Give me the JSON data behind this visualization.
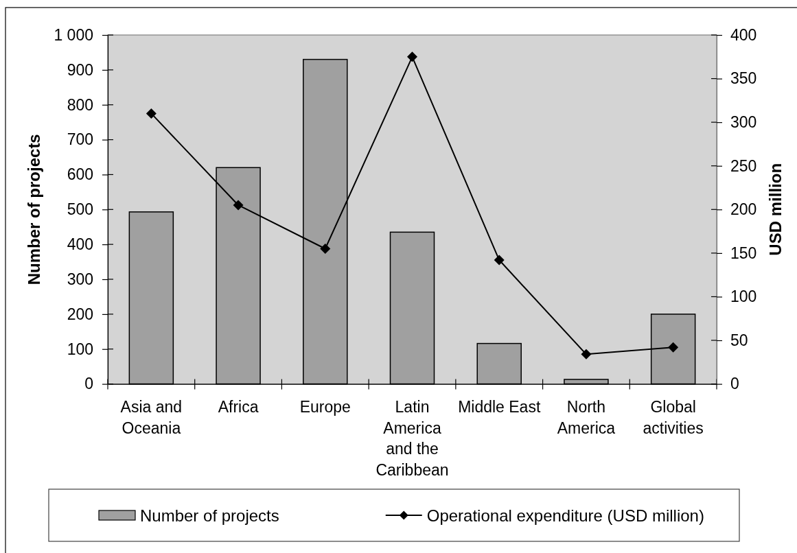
{
  "chart_data": {
    "type": "bar",
    "categories": [
      "Asia and Oceania",
      "Africa",
      "Europe",
      "Latin America and the Caribbean",
      "Middle East",
      "North America",
      "Global activities"
    ],
    "series": [
      {
        "name": "Number of projects",
        "color": "#a0a0a0",
        "values": [
          493,
          620,
          930,
          435,
          116,
          13,
          200
        ]
      },
      {
        "name": "Operational expenditure (USD million)",
        "type": "line",
        "axis": "y2",
        "color": "#000000",
        "marker": "diamond",
        "values": [
          310,
          205,
          155,
          375,
          142,
          34,
          42
        ]
      }
    ],
    "ylabel": "Number of projects",
    "y2label": "USD million",
    "ylim": [
      0,
      1000
    ],
    "yticks": [
      0,
      100,
      200,
      300,
      400,
      500,
      600,
      700,
      800,
      900,
      {
        "value": 1000,
        "label": "1 000"
      }
    ],
    "y2lim": [
      0,
      400
    ],
    "y2ticks": [
      0,
      50,
      100,
      150,
      200,
      250,
      300,
      350,
      400
    ],
    "legend": "bottom"
  }
}
